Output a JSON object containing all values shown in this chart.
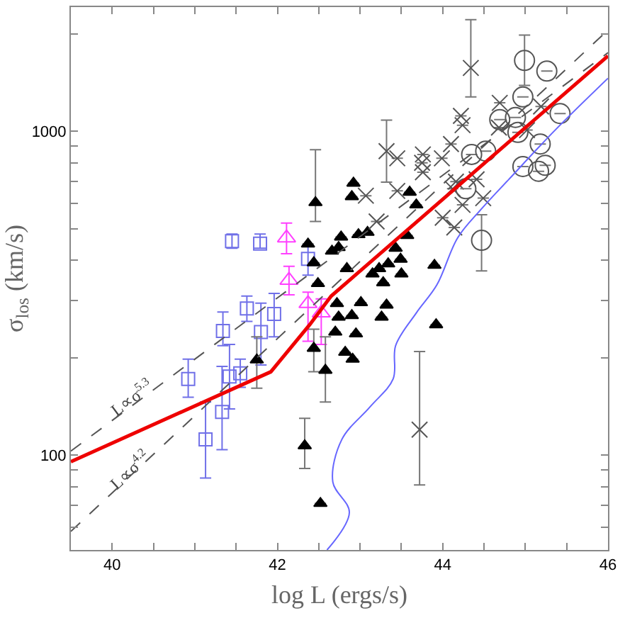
{
  "chart_data": {
    "type": "scatter",
    "xlabel": "log L (ergs/s)",
    "ylabel": "σ$_{los}$ (km/s)",
    "log": "y",
    "xlim": [
      39.5,
      46
    ],
    "ylim": [
      51,
      2420
    ],
    "xticks": [
      40,
      {
        "value": 40.5,
        "label": null
      },
      {
        "value": 41,
        "label": null
      },
      {
        "value": 41.5,
        "label": null
      },
      42,
      {
        "value": 42.5,
        "label": null
      },
      {
        "value": 43,
        "label": null
      },
      {
        "value": 43.5,
        "label": null
      },
      44,
      {
        "value": 44.5,
        "label": null
      },
      {
        "value": 45,
        "label": null
      },
      {
        "value": 45.5,
        "label": null
      },
      46
    ],
    "yticks": [
      {
        "value": 60,
        "label": null
      },
      {
        "value": 70,
        "label": null
      },
      {
        "value": 80,
        "label": null
      },
      {
        "value": 90,
        "label": null
      },
      100,
      {
        "value": 200,
        "label": null
      },
      {
        "value": 300,
        "label": null
      },
      {
        "value": 400,
        "label": null
      },
      {
        "value": 500,
        "label": null
      },
      {
        "value": 600,
        "label": null
      },
      {
        "value": 700,
        "label": null
      },
      {
        "value": 800,
        "label": null
      },
      {
        "value": 900,
        "label": null
      },
      1000,
      {
        "value": 2000,
        "label": null
      }
    ],
    "series": [
      {
        "marker": "square-open",
        "color": "#7070e8",
        "x": [
          40.92,
          41.13,
          41.33,
          41.34,
          41.42,
          41.55,
          41.63,
          41.8,
          41.96,
          41.45,
          41.79,
          42.37
        ],
        "values": [
          172,
          112,
          136,
          242,
          175,
          179,
          284,
          240,
          273,
          458,
          450,
          404
        ],
        "errors": [
          [
            151,
            198
          ],
          [
            85,
            146
          ],
          [
            104,
            188
          ],
          [
            218,
            277
          ],
          [
            139,
            220
          ],
          [
            162,
            198
          ],
          [
            259,
            310
          ],
          [
            190,
            295
          ],
          [
            232,
            316
          ],
          [
            436,
            482
          ],
          [
            436,
            482
          ],
          [
            360,
            445
          ]
        ]
      },
      {
        "marker": "triangle-open",
        "color": "#ff40ff",
        "x": [
          42.11,
          42.14,
          42.37,
          42.53
        ],
        "values": [
          469,
          347,
          294,
          275
        ],
        "errors": [
          [
            419,
            521
          ],
          [
            313,
            383
          ],
          [
            225,
            319
          ],
          [
            220,
            304
          ]
        ]
      },
      {
        "marker": "triangle",
        "color": "#000000",
        "x": [
          42.46,
          42.37,
          42.44,
          42.49,
          41.75,
          42.44,
          42.58,
          42.33,
          42.52,
          42.72,
          42.74,
          42.7,
          42.82,
          42.91,
          42.95,
          42.9,
          43.01,
          43.26,
          43.32,
          43.92,
          42.92,
          42.9,
          43.6,
          43.68,
          42.98,
          43.09,
          42.66,
          42.74,
          42.77,
          43.57,
          43.49,
          43.43,
          43.34,
          43.23,
          43.15,
          43.28,
          43.5,
          42.84,
          43.9
        ],
        "values": [
          603,
          449,
          393,
          339,
          197,
          214,
          183,
          107,
          71,
          294,
          267,
          240,
          208,
          198,
          237,
          270,
          296,
          267,
          291,
          253,
          692,
          629,
          649,
          593,
          480,
          488,
          427,
          438,
          472,
          477,
          403,
          436,
          390,
          377,
          363,
          341,
          363,
          377,
          386
        ],
        "errors": [
          [
            527,
            878
          ],
          null,
          null,
          null,
          [
            161,
            232
          ],
          [
            181,
            245
          ],
          [
            146,
            232
          ],
          [
            91,
            130
          ],
          null,
          null,
          null,
          null,
          null,
          null,
          null,
          null,
          null,
          null,
          null,
          null,
          null,
          null,
          null,
          null,
          null,
          null,
          null,
          null,
          null,
          null,
          null,
          null,
          null,
          null,
          null,
          null,
          null,
          null,
          null
        ]
      },
      {
        "marker": "cross",
        "color": "#555555",
        "x": [
          44.34,
          43.32,
          43.45,
          43.76,
          43.75,
          43.99,
          44.1,
          44.22,
          44.24,
          44.69,
          44.68,
          45.19,
          45.02,
          44.41,
          44.16,
          44.12,
          43.76,
          43.45,
          43.07,
          43.2,
          44.14,
          44.24,
          44.49,
          44.0,
          43.72
        ],
        "values": [
          1570,
          869,
          826,
          849,
          800,
          826,
          914,
          1117,
          1045,
          1225,
          1028,
          1194,
          1009,
          711,
          700,
          665,
          748,
          655,
          633,
          527,
          505,
          593,
          622,
          541,
          120
        ],
        "errors": [
          [
            1277,
            2213
          ],
          [
            697,
            1083
          ],
          null,
          null,
          null,
          null,
          null,
          null,
          null,
          null,
          null,
          null,
          null,
          null,
          null,
          null,
          null,
          null,
          null,
          null,
          null,
          null,
          null,
          null,
          [
            81,
            209
          ]
        ]
      },
      {
        "marker": "circle-open",
        "color": "#555555",
        "x": [
          44.99,
          45.26,
          44.97,
          44.69,
          44.88,
          45.42,
          44.91,
          44.35,
          44.52,
          45.18,
          44.97,
          45.24,
          45.16,
          44.28,
          44.47
        ],
        "values": [
          1656,
          1535,
          1277,
          1087,
          1104,
          1135,
          993,
          849,
          869,
          914,
          779,
          786,
          753,
          665,
          461
        ],
        "errors": [
          [
            1387,
            1983
          ],
          null,
          null,
          null,
          null,
          null,
          null,
          null,
          null,
          null,
          null,
          null,
          null,
          null,
          [
            371,
            553
          ]
        ]
      },
      {
        "type": "line",
        "line_style": "dashed",
        "color": "#555555",
        "x": [
          39.5,
          46
        ],
        "values": [
          103,
          1750
        ]
      },
      {
        "type": "line",
        "line_style": "dashed",
        "color": "#555555",
        "x": [
          39.5,
          46
        ],
        "values": [
          58.2,
          2055
        ]
      },
      {
        "type": "line",
        "line_style": "solid",
        "color": "#6666ff",
        "x": [
          42.6,
          42.87,
          42.67,
          42.78,
          43.12,
          43.4,
          43.43,
          43.68,
          43.93,
          44.18,
          44.46,
          44.8,
          45.36,
          46.0
        ],
        "values": [
          51,
          66.6,
          82.7,
          112,
          141,
          172,
          218,
          275,
          336,
          469,
          573,
          711,
          1009,
          1459
        ]
      },
      {
        "type": "line",
        "line_style": "solid",
        "color": "#ee0000",
        "x": [
          39.5,
          41.92,
          42.39,
          42.65,
          46.0
        ],
        "values": [
          95.5,
          181,
          253,
          310,
          1710
        ]
      }
    ],
    "annotations": [
      {
        "text": "L∝σ$^{5.3}$",
        "x": 40.23,
        "y": 151
      },
      {
        "text": "L∝σ$^{4.2}$",
        "x": 40.21,
        "y": 90
      }
    ]
  }
}
